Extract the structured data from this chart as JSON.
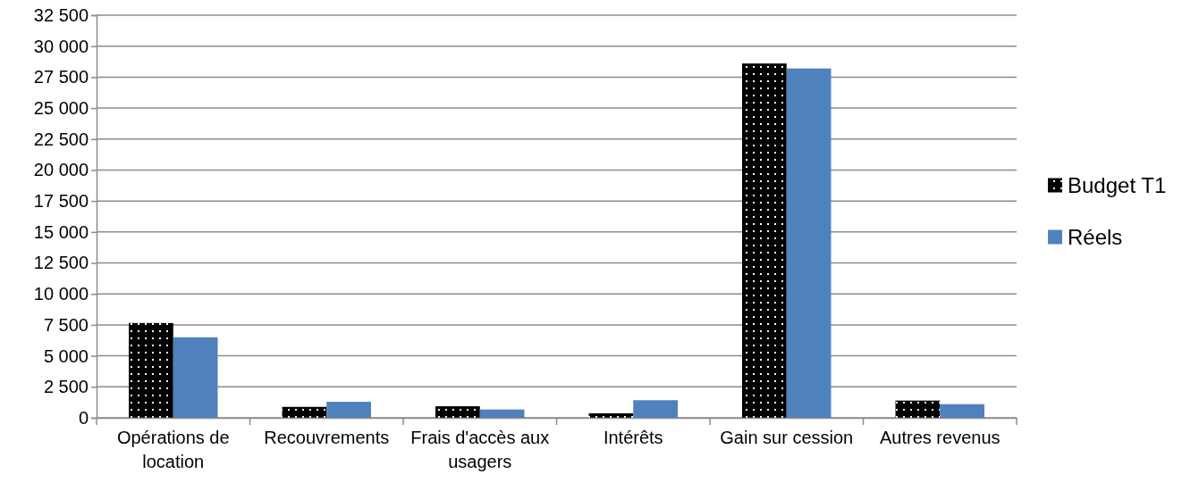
{
  "chart_data": {
    "type": "bar",
    "categories": [
      "Opérations de location",
      "Recouvrements",
      "Frais d'accès aux usagers",
      "Intérêts",
      "Gain sur cession",
      "Autres revenus"
    ],
    "series": [
      {
        "name": "Budget T1",
        "color": "#000000",
        "values": [
          7650,
          880,
          930,
          360,
          28600,
          1390
        ]
      },
      {
        "name": "Réels",
        "color": "#4f81bd",
        "values": [
          6500,
          1290,
          670,
          1420,
          28200,
          1100
        ]
      }
    ],
    "ylim": [
      0,
      32500
    ],
    "yticks": [
      0,
      {
        "value": 2500,
        "label": "2 500"
      },
      {
        "value": 5000,
        "label": "5 000"
      },
      {
        "value": 7500,
        "label": "7 500"
      },
      {
        "value": 10000,
        "label": "10 000"
      },
      {
        "value": 12500,
        "label": "12 500"
      },
      {
        "value": 15000,
        "label": "15 000"
      },
      {
        "value": 17500,
        "label": "17 500"
      },
      {
        "value": 20000,
        "label": "20 000"
      },
      {
        "value": 22500,
        "label": "22 500"
      },
      {
        "value": 25000,
        "label": "25 000"
      },
      {
        "value": 27500,
        "label": "27 500"
      },
      {
        "value": 30000,
        "label": "30 000"
      },
      {
        "value": 32500,
        "label": "32 500"
      }
    ],
    "grid": "y",
    "legend": "right"
  }
}
